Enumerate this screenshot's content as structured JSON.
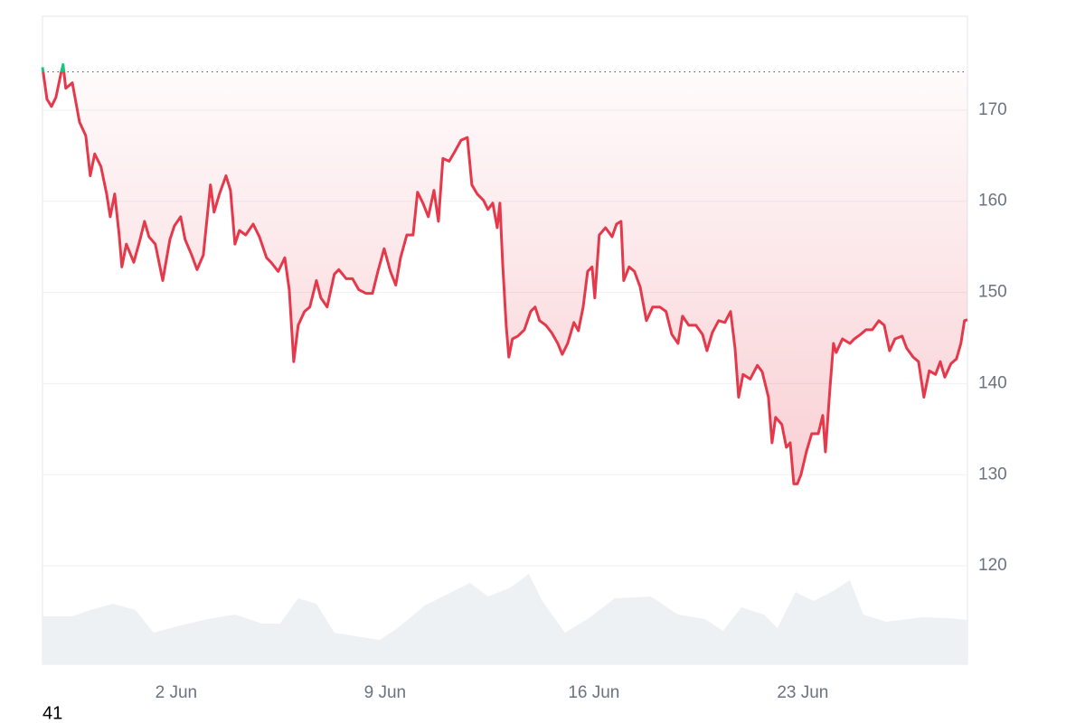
{
  "chart_data": {
    "type": "line",
    "ylim": [
      109.2,
      180.3
    ],
    "yticks": [
      120,
      130,
      140,
      150,
      160,
      170
    ],
    "grid": true,
    "xlim": [
      -2.48,
      28.52
    ],
    "xticks": [
      {
        "value": 2,
        "label": "2 Jun"
      },
      {
        "value": 9,
        "label": "9 Jun"
      },
      {
        "value": 16,
        "label": "16 Jun"
      },
      {
        "value": 23,
        "label": "23 Jun"
      }
    ],
    "reference_line": 174.2,
    "color_below": "#e5394b",
    "color_above": "#16c784",
    "x": [
      -2.48,
      -2.33,
      -2.18,
      -2.03,
      -1.85,
      -1.79,
      -1.7,
      -1.48,
      -1.24,
      -1.03,
      -0.88,
      -0.73,
      -0.52,
      -0.33,
      -0.21,
      -0.06,
      0.09,
      0.18,
      0.33,
      0.58,
      0.79,
      0.94,
      1.09,
      1.3,
      1.55,
      1.79,
      1.94,
      2.15,
      2.3,
      2.52,
      2.7,
      2.91,
      3.15,
      3.27,
      3.45,
      3.67,
      3.82,
      3.97,
      4.12,
      4.33,
      4.58,
      4.79,
      5.03,
      5.18,
      5.42,
      5.64,
      5.79,
      5.94,
      6.09,
      6.3,
      6.48,
      6.7,
      6.85,
      7.06,
      7.3,
      7.45,
      7.7,
      7.91,
      8.12,
      8.36,
      8.58,
      8.76,
      8.97,
      9.18,
      9.36,
      9.52,
      9.73,
      9.94,
      10.09,
      10.27,
      10.45,
      10.64,
      10.79,
      10.94,
      11.15,
      11.33,
      11.55,
      11.76,
      11.91,
      12.09,
      12.3,
      12.45,
      12.61,
      12.76,
      12.85,
      12.94,
      13.06,
      13.15,
      13.27,
      13.45,
      13.67,
      13.88,
      14.03,
      14.18,
      14.39,
      14.58,
      14.79,
      14.94,
      15.12,
      15.33,
      15.48,
      15.64,
      15.79,
      15.94,
      16.03,
      16.18,
      16.39,
      16.61,
      16.76,
      16.91,
      17.0,
      17.18,
      17.36,
      17.55,
      17.76,
      17.97,
      18.21,
      18.42,
      18.61,
      18.82,
      18.97,
      19.18,
      19.42,
      19.64,
      19.79,
      19.97,
      20.18,
      20.39,
      20.58,
      20.73,
      20.85,
      21.0,
      21.24,
      21.48,
      21.64,
      21.85,
      21.97,
      22.09,
      22.3,
      22.45,
      22.58,
      22.7,
      22.82,
      22.94,
      23.12,
      23.3,
      23.52,
      23.67,
      23.76,
      23.91,
      24.03,
      24.12,
      24.33,
      24.58,
      24.73,
      24.94,
      25.12,
      25.33,
      25.55,
      25.73,
      25.91,
      26.09,
      26.33,
      26.48,
      26.7,
      26.88,
      27.06,
      27.24,
      27.45,
      27.61,
      27.76,
      27.97,
      28.15,
      28.3,
      28.42,
      28.52
    ],
    "values": [
      174.7,
      171.2,
      170.4,
      171.4,
      174.2,
      175,
      172.4,
      173,
      168.7,
      167.2,
      162.8,
      165.2,
      163.8,
      160.8,
      158.3,
      160.8,
      156.3,
      152.8,
      155.3,
      153.3,
      155.8,
      157.8,
      156.1,
      155.3,
      151.3,
      155.8,
      157.3,
      158.3,
      155.8,
      154.1,
      152.5,
      154.1,
      161.8,
      158.8,
      160.8,
      162.8,
      161.2,
      155.3,
      156.8,
      156.3,
      157.5,
      156.1,
      153.8,
      153.3,
      152.3,
      153.8,
      150.3,
      142.4,
      146.4,
      147.9,
      148.4,
      151.3,
      149.4,
      148.4,
      152,
      152.5,
      151.5,
      151.5,
      150.3,
      149.9,
      149.9,
      152.3,
      154.8,
      152.3,
      150.8,
      153.8,
      156.3,
      156.3,
      161,
      159.8,
      158.3,
      161.2,
      157.8,
      164.7,
      164.4,
      165.4,
      166.7,
      167,
      161.8,
      160.8,
      160.1,
      159.1,
      159.8,
      157.1,
      159.8,
      153.3,
      146.4,
      142.9,
      144.9,
      145.2,
      145.9,
      147.9,
      148.4,
      146.9,
      146.4,
      145.6,
      144.4,
      143.2,
      144.4,
      146.7,
      145.8,
      148.4,
      152.3,
      152.8,
      149.4,
      156.3,
      157.1,
      156.1,
      157.5,
      157.8,
      151.3,
      152.8,
      152.3,
      150.6,
      146.9,
      148.4,
      148.4,
      147.9,
      145.4,
      144.4,
      147.4,
      146.4,
      146.4,
      145.4,
      143.6,
      145.6,
      146.9,
      146.7,
      147.9,
      143.9,
      138.5,
      141,
      140.5,
      142,
      141.3,
      138.5,
      133.5,
      136.3,
      135.5,
      133,
      133.5,
      129,
      129,
      130,
      132.5,
      134.5,
      134.5,
      136.5,
      132.5,
      139.4,
      144.4,
      143.4,
      144.9,
      144.4,
      144.9,
      145.4,
      145.9,
      145.9,
      146.9,
      146.4,
      143.6,
      144.9,
      145.2,
      143.9,
      142.9,
      142.4,
      138.5,
      141.4,
      141,
      142.4,
      140.7,
      142.2,
      142.7,
      144.4,
      146.9,
      147
    ],
    "volume": {
      "color": "#eef1f4",
      "x": [
        -2.48,
        -1.48,
        -0.88,
        -0.12,
        0.64,
        1.24,
        2.15,
        3.06,
        3.97,
        4.88,
        5.48,
        6.09,
        6.7,
        7.3,
        8.21,
        8.82,
        9.42,
        10.33,
        11.24,
        11.85,
        12.45,
        13.21,
        13.82,
        14.27,
        15.03,
        15.79,
        16.7,
        17.91,
        18.82,
        19.73,
        20.33,
        20.94,
        21.7,
        22.15,
        22.76,
        23.36,
        23.97,
        24.58,
        25.03,
        25.79,
        27.0,
        27.91,
        28.52
      ],
      "values": [
        53,
        53,
        60,
        67,
        60,
        35,
        43,
        50,
        55,
        45,
        45,
        73,
        67,
        35,
        30,
        27,
        40,
        65,
        80,
        90,
        75,
        85,
        100,
        70,
        35,
        50,
        73,
        75,
        55,
        50,
        37,
        63,
        55,
        40,
        80,
        70,
        80,
        93,
        55,
        47,
        52,
        51,
        49
      ]
    },
    "footer": "41"
  }
}
